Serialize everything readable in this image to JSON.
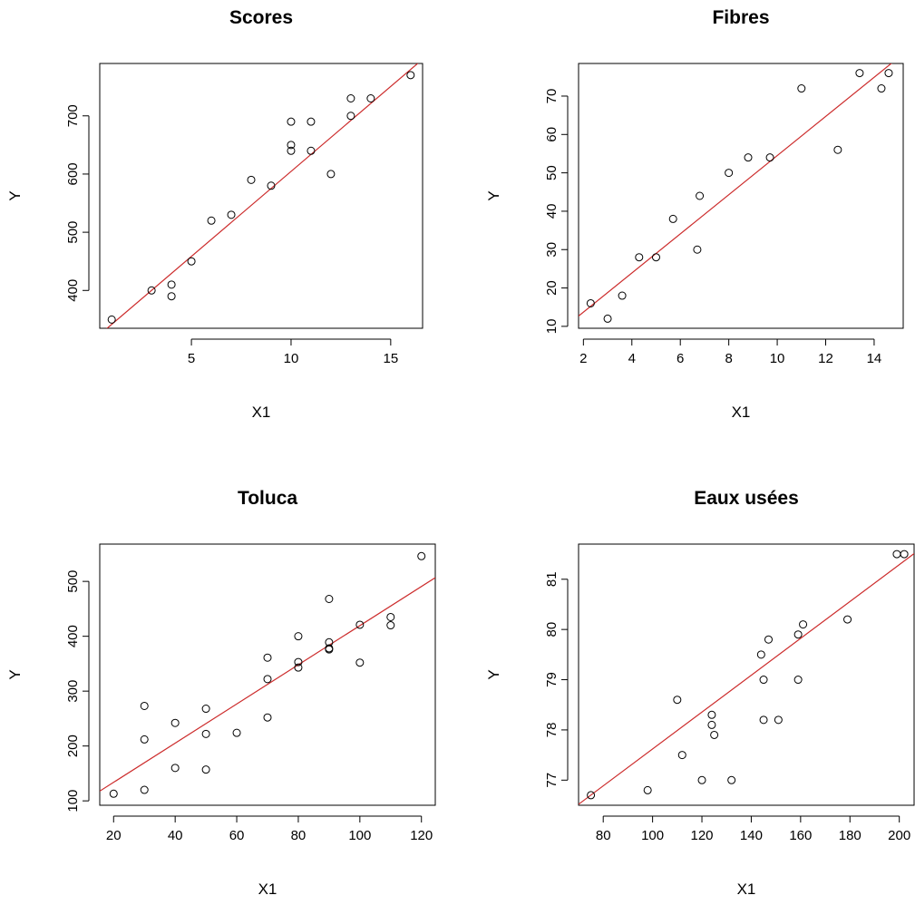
{
  "colors": {
    "points": "#000000",
    "fit_line": "#cc2b2b",
    "background": "#ffffff"
  },
  "chart_data": [
    {
      "type": "scatter",
      "title": "Scores",
      "xlabel": "X1",
      "ylabel": "Y",
      "xlim": [
        0.4,
        16.6
      ],
      "ylim": [
        335,
        790
      ],
      "x_ticks": [
        5,
        10,
        15
      ],
      "y_ticks": [
        400,
        500,
        600,
        700
      ],
      "grid": false,
      "legend": "none",
      "fit_line": {
        "intercept": 312.5,
        "slope": 29.2
      },
      "points": [
        {
          "x": 1,
          "y": 350
        },
        {
          "x": 3,
          "y": 400
        },
        {
          "x": 4,
          "y": 410
        },
        {
          "x": 4,
          "y": 390
        },
        {
          "x": 5,
          "y": 450
        },
        {
          "x": 6,
          "y": 520
        },
        {
          "x": 7,
          "y": 530
        },
        {
          "x": 8,
          "y": 590
        },
        {
          "x": 9,
          "y": 580
        },
        {
          "x": 10,
          "y": 690
        },
        {
          "x": 10,
          "y": 650
        },
        {
          "x": 10,
          "y": 640
        },
        {
          "x": 11,
          "y": 690
        },
        {
          "x": 11,
          "y": 640
        },
        {
          "x": 12,
          "y": 600
        },
        {
          "x": 13,
          "y": 730
        },
        {
          "x": 13,
          "y": 700
        },
        {
          "x": 14,
          "y": 730
        },
        {
          "x": 16,
          "y": 770
        }
      ]
    },
    {
      "type": "scatter",
      "title": "Fibres",
      "xlabel": "X1",
      "ylabel": "Y",
      "xlim": [
        1.8,
        15.2
      ],
      "ylim": [
        9.5,
        78.5
      ],
      "x_ticks": [
        2,
        4,
        6,
        8,
        10,
        12,
        14
      ],
      "y_ticks": [
        10,
        20,
        30,
        40,
        50,
        60,
        70
      ],
      "grid": false,
      "legend": "none",
      "fit_line": {
        "intercept": 3.5,
        "slope": 5.1
      },
      "points": [
        {
          "x": 2.3,
          "y": 16
        },
        {
          "x": 3,
          "y": 12
        },
        {
          "x": 3.6,
          "y": 18
        },
        {
          "x": 4.3,
          "y": 28
        },
        {
          "x": 5,
          "y": 28
        },
        {
          "x": 5.7,
          "y": 38
        },
        {
          "x": 6.7,
          "y": 30
        },
        {
          "x": 6.8,
          "y": 44
        },
        {
          "x": 8,
          "y": 50
        },
        {
          "x": 8.8,
          "y": 54
        },
        {
          "x": 9.7,
          "y": 54
        },
        {
          "x": 11,
          "y": 72
        },
        {
          "x": 12.5,
          "y": 56
        },
        {
          "x": 13.4,
          "y": 76
        },
        {
          "x": 14.3,
          "y": 72
        },
        {
          "x": 14.6,
          "y": 76
        }
      ]
    },
    {
      "type": "scatter",
      "title": "Toluca",
      "xlabel": "X1",
      "ylabel": "Y",
      "xlim": [
        15.5,
        124.5
      ],
      "ylim": [
        92,
        568
      ],
      "x_ticks": [
        20,
        40,
        60,
        80,
        100,
        120
      ],
      "y_ticks": [
        100,
        200,
        300,
        400,
        500
      ],
      "grid": false,
      "legend": "none",
      "fit_line": {
        "intercept": 62.4,
        "slope": 3.57
      },
      "points": [
        {
          "x": 20,
          "y": 113
        },
        {
          "x": 30,
          "y": 273
        },
        {
          "x": 30,
          "y": 212
        },
        {
          "x": 30,
          "y": 120
        },
        {
          "x": 40,
          "y": 242
        },
        {
          "x": 40,
          "y": 160
        },
        {
          "x": 50,
          "y": 268
        },
        {
          "x": 50,
          "y": 222
        },
        {
          "x": 50,
          "y": 157
        },
        {
          "x": 60,
          "y": 224
        },
        {
          "x": 70,
          "y": 361
        },
        {
          "x": 70,
          "y": 322
        },
        {
          "x": 70,
          "y": 252
        },
        {
          "x": 80,
          "y": 400
        },
        {
          "x": 80,
          "y": 353
        },
        {
          "x": 80,
          "y": 343
        },
        {
          "x": 90,
          "y": 468
        },
        {
          "x": 90,
          "y": 389
        },
        {
          "x": 90,
          "y": 378
        },
        {
          "x": 90,
          "y": 376
        },
        {
          "x": 100,
          "y": 421
        },
        {
          "x": 100,
          "y": 352
        },
        {
          "x": 110,
          "y": 435
        },
        {
          "x": 110,
          "y": 420
        },
        {
          "x": 120,
          "y": 546
        }
      ]
    },
    {
      "type": "scatter",
      "title": "Eaux usées",
      "xlabel": "X1",
      "ylabel": "Y",
      "xlim": [
        70,
        206
      ],
      "ylim": [
        76.5,
        81.7
      ],
      "x_ticks": [
        80,
        100,
        120,
        140,
        160,
        180,
        200
      ],
      "y_ticks": [
        77,
        78,
        79,
        80,
        81
      ],
      "grid": false,
      "legend": "none",
      "fit_line": {
        "intercept": 73.95,
        "slope": 0.0367
      },
      "points": [
        {
          "x": 75,
          "y": 76.7
        },
        {
          "x": 98,
          "y": 76.8
        },
        {
          "x": 110,
          "y": 78.6
        },
        {
          "x": 112,
          "y": 77.5
        },
        {
          "x": 120,
          "y": 77.0
        },
        {
          "x": 124,
          "y": 78.3
        },
        {
          "x": 124,
          "y": 78.1
        },
        {
          "x": 125,
          "y": 77.9
        },
        {
          "x": 132,
          "y": 77.0
        },
        {
          "x": 144,
          "y": 79.5
        },
        {
          "x": 145,
          "y": 79.0
        },
        {
          "x": 145,
          "y": 78.2
        },
        {
          "x": 147,
          "y": 79.8
        },
        {
          "x": 151,
          "y": 78.2
        },
        {
          "x": 159,
          "y": 79.9
        },
        {
          "x": 159,
          "y": 79.0
        },
        {
          "x": 161,
          "y": 80.1
        },
        {
          "x": 179,
          "y": 80.2
        },
        {
          "x": 199,
          "y": 81.5
        },
        {
          "x": 202,
          "y": 81.5
        }
      ]
    }
  ]
}
